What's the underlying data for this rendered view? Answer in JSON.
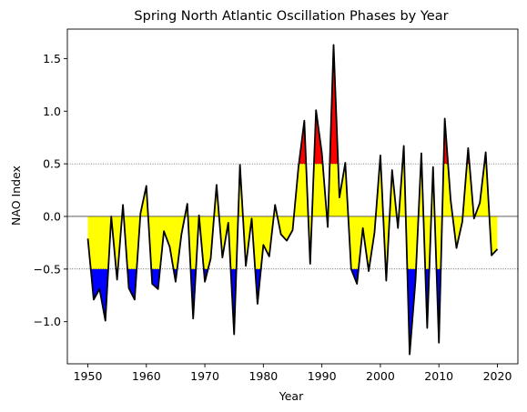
{
  "chart_data": {
    "type": "line",
    "title": "Spring North Atlantic Oscillation Phases by Year",
    "xlabel": "Year",
    "ylabel": "NAO Index",
    "xlim": [
      1946.5,
      2023.5
    ],
    "ylim": [
      -1.4,
      1.78
    ],
    "xticks": [
      1950,
      1960,
      1970,
      1980,
      1990,
      2000,
      2010,
      2020
    ],
    "yticks": [
      -1.0,
      -0.5,
      0.0,
      0.5,
      1.0,
      1.5
    ],
    "ytick_labels": [
      "−1.0",
      "−0.5",
      "0.0",
      "0.5",
      "1.0",
      "1.5"
    ],
    "grid": false,
    "reference_lines": [
      {
        "y": 0.5,
        "style": "dotted"
      },
      {
        "y": 0.0,
        "style": "solid"
      },
      {
        "y": -0.5,
        "style": "dotted"
      }
    ],
    "fills": [
      {
        "name": "fill between index and zero",
        "color": "#ffff00"
      },
      {
        "name": "index below -0.5",
        "color": "#0000ff"
      },
      {
        "name": "index above 0.5",
        "color": "#ff0000"
      }
    ],
    "series": [
      {
        "color": "#000000",
        "x": [
          1950,
          1951,
          1952,
          1953,
          1954,
          1955,
          1956,
          1957,
          1958,
          1959,
          1960,
          1961,
          1962,
          1963,
          1964,
          1965,
          1966,
          1967,
          1968,
          1969,
          1970,
          1971,
          1972,
          1973,
          1974,
          1975,
          1976,
          1977,
          1978,
          1979,
          1980,
          1981,
          1982,
          1983,
          1984,
          1985,
          1986,
          1987,
          1988,
          1989,
          1990,
          1991,
          1992,
          1993,
          1994,
          1995,
          1996,
          1997,
          1998,
          1999,
          2000,
          2001,
          2002,
          2003,
          2004,
          2005,
          2006,
          2007,
          2008,
          2009,
          2010,
          2011,
          2012,
          2013,
          2014,
          2015,
          2016,
          2017,
          2018,
          2019,
          2020
        ],
        "values": [
          -0.21,
          -0.79,
          -0.69,
          -0.99,
          0.0,
          -0.6,
          0.11,
          -0.68,
          -0.79,
          0.03,
          0.29,
          -0.64,
          -0.69,
          -0.14,
          -0.29,
          -0.62,
          -0.17,
          0.12,
          -0.97,
          0.01,
          -0.62,
          -0.4,
          0.3,
          -0.39,
          -0.06,
          -1.12,
          0.49,
          -0.47,
          -0.02,
          -0.83,
          -0.27,
          -0.38,
          0.11,
          -0.17,
          -0.23,
          -0.13,
          0.47,
          0.91,
          -0.45,
          1.01,
          0.6,
          -0.1,
          1.63,
          0.18,
          0.51,
          -0.5,
          -0.64,
          -0.11,
          -0.52,
          -0.15,
          0.58,
          -0.61,
          0.44,
          -0.11,
          0.67,
          -1.31,
          -0.61,
          0.6,
          -1.06,
          0.47,
          -1.2,
          0.93,
          0.16,
          -0.3,
          -0.05,
          0.65,
          -0.02,
          0.13,
          0.61,
          -0.37,
          -0.31
        ]
      }
    ]
  }
}
